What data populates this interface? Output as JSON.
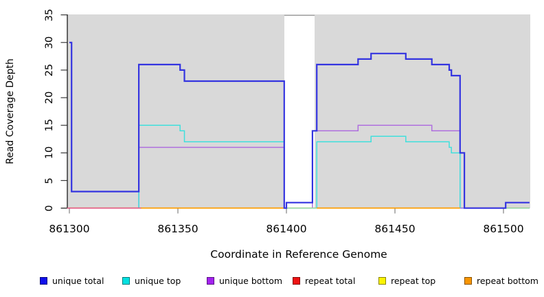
{
  "chart_data": {
    "type": "line",
    "subtype": "step-coverage-plot",
    "title": "",
    "xlabel": "Coordinate in Reference Genome",
    "ylabel": "Read Coverage Depth",
    "xlim": [
      861299,
      861512
    ],
    "ylim": [
      0,
      35
    ],
    "grid": false,
    "panel_background": "#d9d9d9",
    "x_ticks": [
      861300,
      861350,
      861400,
      861450,
      861500
    ],
    "x_tick_labels": [
      "861300",
      "861350",
      "861400",
      "861450",
      "861500"
    ],
    "y_ticks": [
      0,
      5,
      10,
      15,
      20,
      25,
      30,
      35
    ],
    "y_tick_labels": [
      "0",
      "5",
      "10",
      "15",
      "20",
      "25",
      "30",
      "35"
    ],
    "masked_region": {
      "x_start": 861399,
      "x_end": 861413,
      "note": "white no-data gap in panel"
    },
    "series": [
      {
        "name": "unique total",
        "color": "#3434e0",
        "width": 2.2,
        "x_end": 861512,
        "steps": [
          [
            861300,
            30
          ],
          [
            861301,
            3
          ],
          [
            861332,
            26
          ],
          [
            861351,
            25
          ],
          [
            861353,
            23
          ],
          [
            861399,
            0
          ],
          [
            861400,
            1
          ],
          [
            861412,
            14
          ],
          [
            861414,
            26
          ],
          [
            861433,
            27
          ],
          [
            861439,
            28
          ],
          [
            861455,
            27
          ],
          [
            861467,
            26
          ],
          [
            861475,
            25
          ],
          [
            861476,
            24
          ],
          [
            861480,
            10
          ],
          [
            861482,
            0
          ],
          [
            861501,
            1
          ]
        ]
      },
      {
        "name": "unique top",
        "color": "#40e0dc",
        "width": 1.5,
        "x_end": 861512,
        "steps": [
          [
            861300,
            0
          ],
          [
            861332,
            15
          ],
          [
            861351,
            14
          ],
          [
            861353,
            12
          ],
          [
            861399,
            0
          ],
          [
            861414,
            12
          ],
          [
            861439,
            13
          ],
          [
            861455,
            12
          ],
          [
            861475,
            11
          ],
          [
            861476,
            10
          ],
          [
            861480,
            0
          ]
        ]
      },
      {
        "name": "unique bottom",
        "color": "#af6fde",
        "width": 1.5,
        "x_end": 861512,
        "steps": [
          [
            861300,
            0
          ],
          [
            861332,
            11
          ],
          [
            861399,
            0
          ],
          [
            861412,
            14
          ],
          [
            861433,
            15
          ],
          [
            861467,
            14
          ],
          [
            861480,
            0
          ]
        ]
      },
      {
        "name": "repeat total",
        "color": "#ee1212",
        "width": 1.5,
        "x_end": 861512,
        "steps": [
          [
            861300,
            0
          ]
        ]
      },
      {
        "name": "repeat top",
        "color": "#fbf300",
        "width": 1.5,
        "x_end": 861512,
        "steps": [
          [
            861300,
            0
          ]
        ]
      },
      {
        "name": "repeat bottom",
        "color": "#ff9c00",
        "width": 1.7,
        "x_end": 861512,
        "steps": [
          [
            861300,
            0
          ]
        ]
      }
    ],
    "zero_line_segments": [
      {
        "from": 861299,
        "to": 861333,
        "color": "#e25a84"
      },
      {
        "from": 861333,
        "to": 861399,
        "color": "#ff9c00"
      },
      {
        "from": 861400,
        "to": 861414,
        "color": "#93d6a4"
      },
      {
        "from": 861414,
        "to": 861480,
        "color": "#ff9c00"
      },
      {
        "from": 861480,
        "to": 861501,
        "color": "#8f7be8"
      },
      {
        "from": 861501,
        "to": 861512,
        "color": "#93d6a4"
      }
    ],
    "axis_colors": {
      "y_axis_line": "#1a1a1a",
      "y_tick": "#3a3a3a",
      "x_tick": "#8a8a8a",
      "masked_top_edge": "#9e9e9e"
    },
    "legend_position": "bottom"
  },
  "legend": {
    "items": [
      {
        "label": "unique total",
        "color": "#0f0feb"
      },
      {
        "label": "unique top",
        "color": "#00e0e0"
      },
      {
        "label": "unique bottom",
        "color": "#a322ee"
      },
      {
        "label": "repeat total",
        "color": "#ee1212"
      },
      {
        "label": "repeat top",
        "color": "#fbf300"
      },
      {
        "label": "repeat bottom",
        "color": "#f79500"
      }
    ]
  }
}
